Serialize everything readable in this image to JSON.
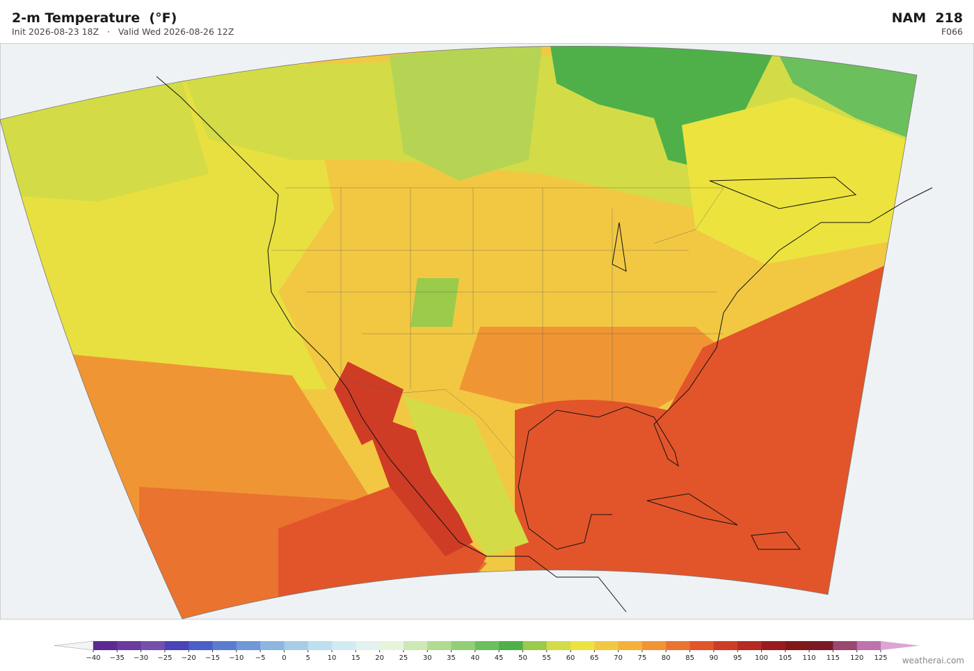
{
  "header": {
    "title": "2-m Temperature  (°F)",
    "subtitle": "Init 2026-08-23 18Z   ·   Valid Wed 2026-08-26 12Z",
    "model": "NAM  218",
    "forecast_hour": "F066"
  },
  "colorbar": {
    "ticks": [
      {
        "value": -40,
        "label": "−40"
      },
      {
        "value": -35,
        "label": "−35"
      },
      {
        "value": -30,
        "label": "−30"
      },
      {
        "value": -25,
        "label": "−25"
      },
      {
        "value": -20,
        "label": "−20"
      },
      {
        "value": -15,
        "label": "−15"
      },
      {
        "value": -10,
        "label": "−10"
      },
      {
        "value": -5,
        "label": "−5"
      },
      0,
      5,
      10,
      15,
      20,
      25,
      30,
      35,
      40,
      45,
      50,
      55,
      60,
      65,
      70,
      75,
      80,
      85,
      90,
      95,
      100,
      105,
      110,
      115,
      120,
      125
    ],
    "colors": [
      "#5c2a91",
      "#6b3a9e",
      "#7450ad",
      "#4a44b8",
      "#4b5fc8",
      "#5b7dd0",
      "#6f98d8",
      "#8cb5e0",
      "#a6cce8",
      "#bddff0",
      "#d2ebf3",
      "#e2f2ee",
      "#e6f4dc",
      "#cde8b4",
      "#b0dc92",
      "#92cf77",
      "#6cbf5d",
      "#4fb04a",
      "#9acb4b",
      "#d3dc46",
      "#ece33f",
      "#f2c843",
      "#f4b23b",
      "#f09534",
      "#ea7330",
      "#e2552a",
      "#cf3c25",
      "#b52a22",
      "#981c1e",
      "#811818",
      "#7a1a24",
      "#9a4772",
      "#be72ae"
    ],
    "under_color": "#f4f4f4",
    "over_color": "#d9a6d2"
  },
  "footer": {
    "credit": "weatherai.com"
  }
}
